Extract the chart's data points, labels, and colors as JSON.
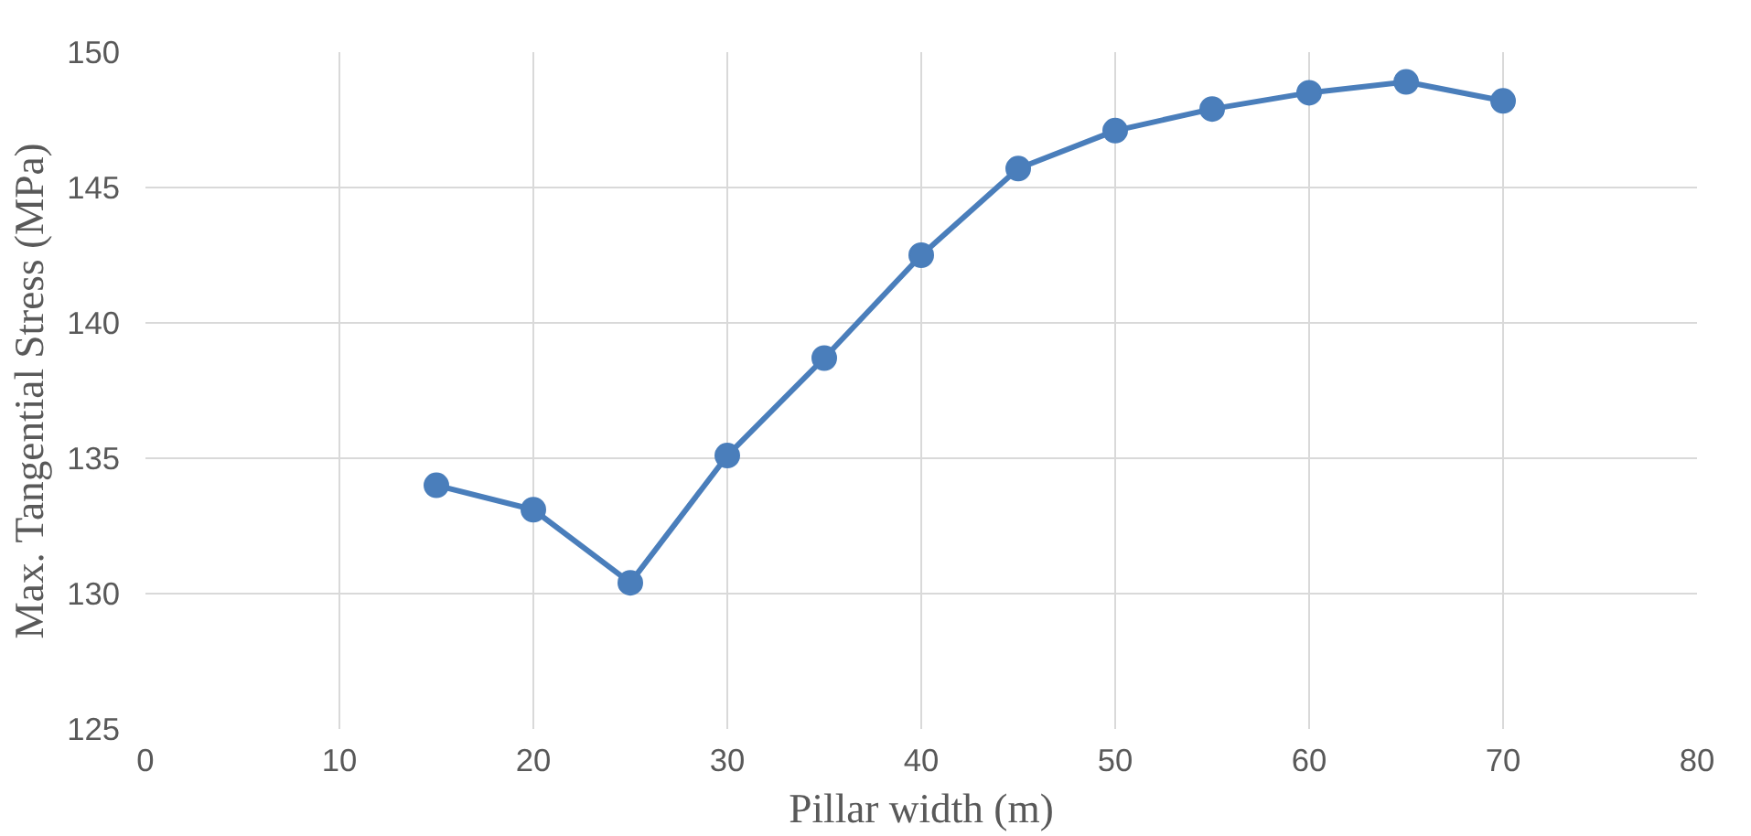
{
  "chart_data": {
    "type": "line",
    "xlabel": "Pillar width (m)",
    "ylabel": "Max. Tangential Stress (MPa)",
    "x": [
      15,
      20,
      25,
      30,
      35,
      40,
      45,
      50,
      55,
      60,
      65,
      70
    ],
    "series": [
      {
        "color": "#4a7ebb",
        "values": [
          134.0,
          133.1,
          130.4,
          135.1,
          138.7,
          142.5,
          145.7,
          147.1,
          147.9,
          148.5,
          148.9,
          148.2
        ]
      }
    ],
    "xlim": [
      0,
      80
    ],
    "xticks": [
      0,
      10,
      20,
      30,
      40,
      50,
      60,
      70,
      80
    ],
    "ylim": [
      125,
      150
    ],
    "yticks": [
      125,
      130,
      135,
      140,
      145,
      150
    ],
    "grid": true,
    "marker": "circle",
    "line_style": "solid"
  }
}
